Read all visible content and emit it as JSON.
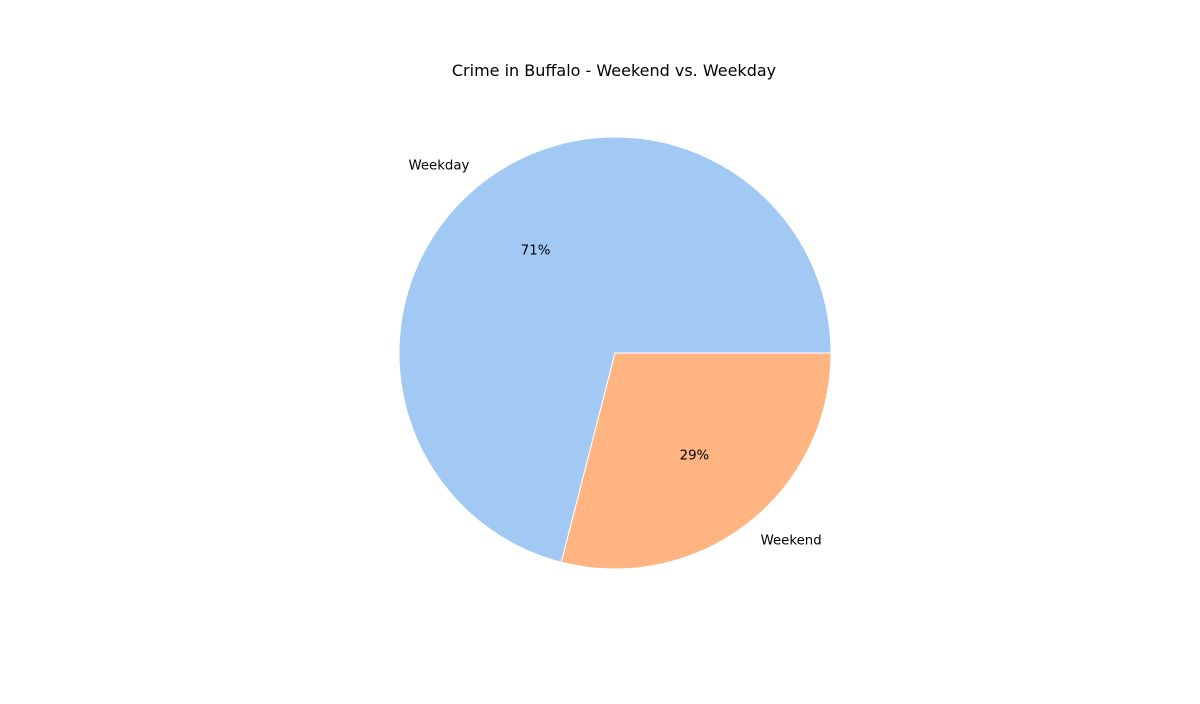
{
  "chart_data": {
    "type": "pie",
    "title": "Crime in Buffalo - Weekend vs. Weekday",
    "categories": [
      "Weekday",
      "Weekend"
    ],
    "values": [
      71,
      29
    ],
    "value_labels": [
      "71%",
      "29%"
    ],
    "colors": [
      "#a1c9f4",
      "#ffb482"
    ],
    "start_angle": 0,
    "direction": "counterclockwise",
    "legend": "none"
  }
}
